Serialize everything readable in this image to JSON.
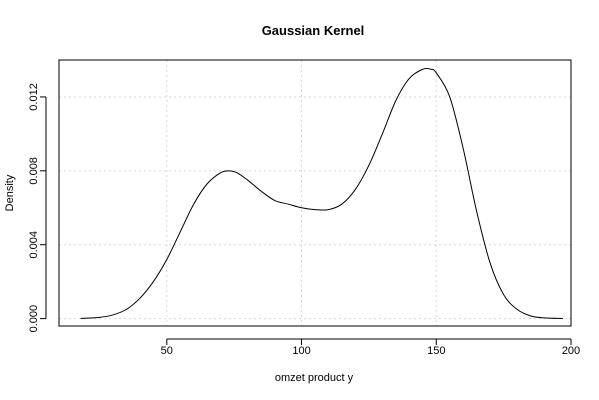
{
  "chart_data": {
    "type": "line",
    "title": "Gaussian Kernel",
    "xlabel": "omzet product y",
    "ylabel": "Density",
    "xlim": [
      10,
      200
    ],
    "ylim": [
      -0.0004,
      0.014
    ],
    "x_ticks": [
      50,
      100,
      150,
      200
    ],
    "y_ticks": [
      0.0,
      0.004,
      0.008,
      0.012
    ],
    "y_tick_labels": [
      "0.000",
      "0.004",
      "0.008",
      "0.012"
    ],
    "grid": true,
    "series": [
      {
        "x": [
          18,
          25,
          30,
          35,
          40,
          45,
          50,
          55,
          60,
          65,
          70,
          73,
          76,
          80,
          85,
          90,
          95,
          100,
          105,
          110,
          115,
          120,
          125,
          130,
          135,
          140,
          145,
          148,
          150,
          155,
          160,
          165,
          170,
          175,
          180,
          185,
          190,
          197
        ],
        "y": [
          1e-05,
          7e-05,
          0.0002,
          0.0005,
          0.0011,
          0.002,
          0.0032,
          0.0047,
          0.0062,
          0.0073,
          0.0079,
          0.008,
          0.0079,
          0.0075,
          0.0069,
          0.0064,
          0.0062,
          0.006,
          0.0059,
          0.0059,
          0.0062,
          0.007,
          0.0083,
          0.01,
          0.0118,
          0.013,
          0.0135,
          0.0135,
          0.0133,
          0.012,
          0.0092,
          0.0058,
          0.003,
          0.0013,
          0.0005,
          0.00015,
          4e-05,
          5e-06
        ]
      }
    ]
  }
}
